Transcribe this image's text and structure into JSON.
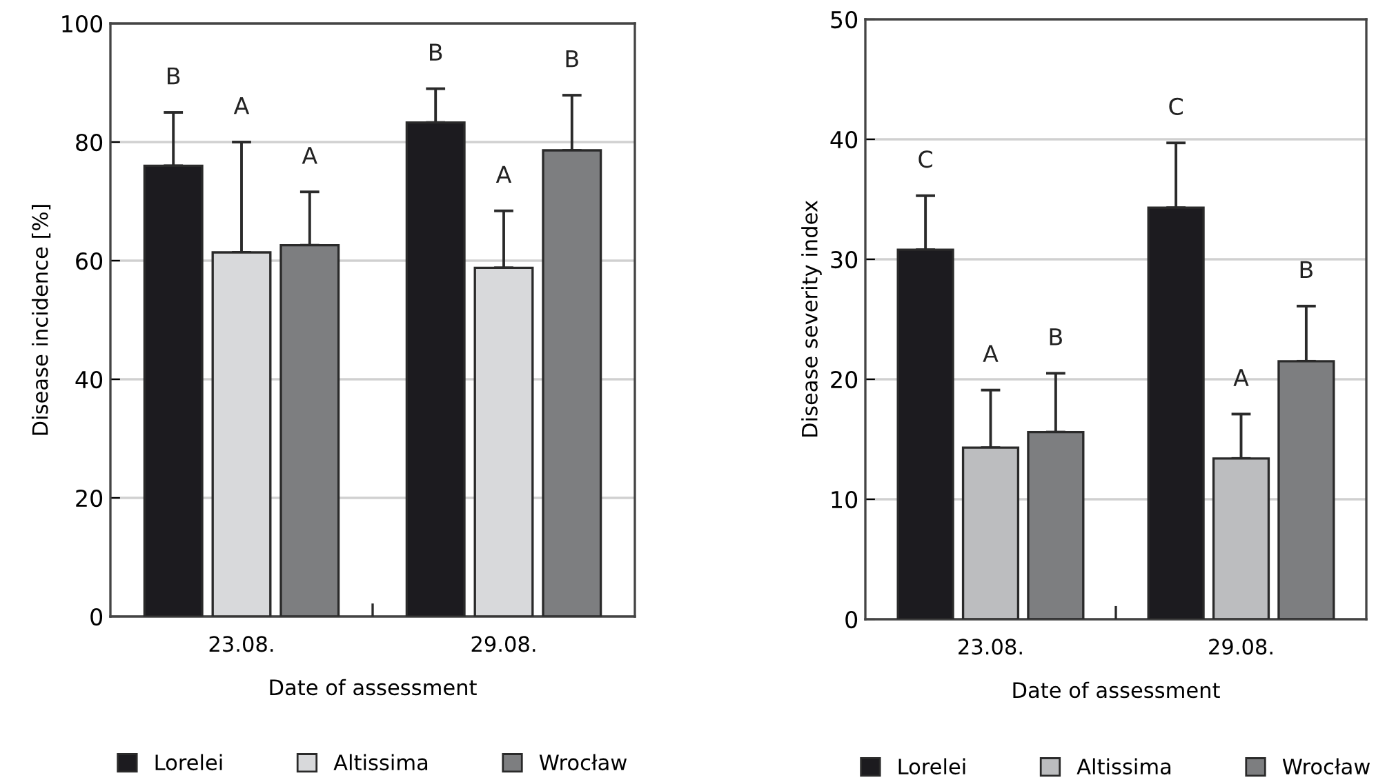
{
  "chart_data": [
    {
      "type": "bar",
      "xlabel": "Date of assessment",
      "ylabel": "Disease incidence [%]",
      "categories": [
        "23.08.",
        "29.08."
      ],
      "series": [
        {
          "name": "Lorelei",
          "color": "#1c1b1f",
          "values": [
            76,
            83.3
          ],
          "errors": [
            [
              76,
              85
            ],
            [
              83.3,
              89
            ]
          ]
        },
        {
          "name": "Altissima",
          "color": "#d8d9db",
          "values": [
            61.4,
            58.8
          ],
          "errors": [
            [
              61.4,
              80
            ],
            [
              58.8,
              68.4
            ]
          ]
        },
        {
          "name": "Wrocław",
          "color": "#7d7e80",
          "values": [
            62.6,
            78.6
          ],
          "errors": [
            [
              62.6,
              71.6
            ],
            [
              78.6,
              87.9
            ]
          ]
        }
      ],
      "annotations": [
        "B",
        "A",
        "A",
        "B",
        "A",
        "B"
      ],
      "ylim": [
        0,
        100
      ],
      "yticks": [
        0,
        20,
        40,
        60,
        80,
        100
      ],
      "grid": "y",
      "legend": "bottom"
    },
    {
      "type": "bar",
      "xlabel": "Date of assessment",
      "ylabel": "Disease severity index",
      "categories": [
        "23.08.",
        "29.08."
      ],
      "series": [
        {
          "name": "Lorelei",
          "color": "#1c1b1f",
          "values": [
            30.8,
            34.3
          ],
          "errors": [
            [
              30.8,
              35.3
            ],
            [
              34.3,
              39.7
            ]
          ]
        },
        {
          "name": "Altissima",
          "color": "#bcbdbf",
          "values": [
            14.3,
            13.4
          ],
          "errors": [
            [
              14.3,
              19.1
            ],
            [
              13.4,
              17.1
            ]
          ]
        },
        {
          "name": "Wrocław",
          "color": "#7d7e80",
          "values": [
            15.6,
            21.5
          ],
          "errors": [
            [
              15.6,
              20.5
            ],
            [
              21.5,
              26.1
            ]
          ]
        }
      ],
      "annotations": [
        "C",
        "A",
        "B",
        "C",
        "A",
        "B"
      ],
      "ylim": [
        0,
        50
      ],
      "yticks": [
        0,
        10,
        20,
        30,
        40,
        50
      ],
      "grid": "y",
      "legend": "bottom"
    }
  ]
}
